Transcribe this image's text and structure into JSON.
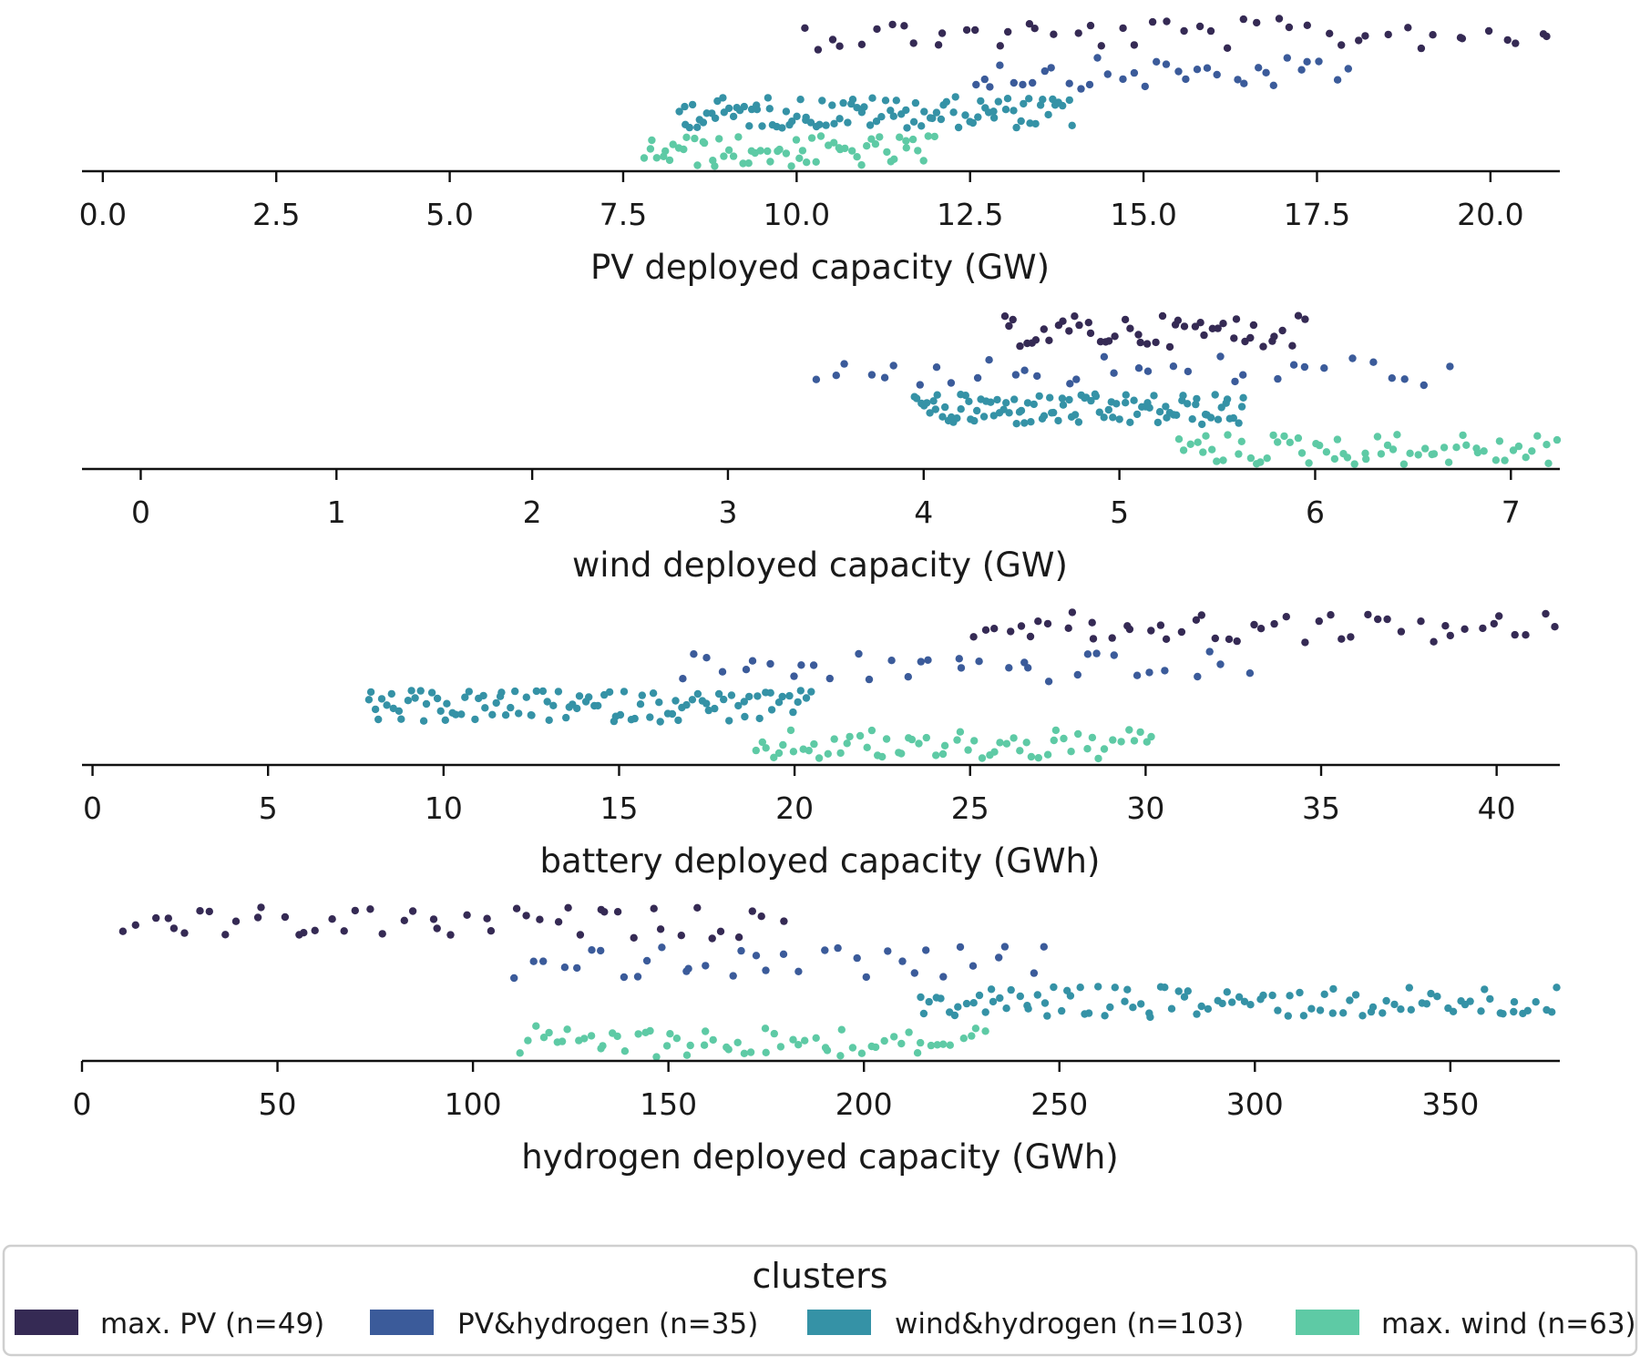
{
  "colors": {
    "maxPV": "#352a54",
    "pvHydrogen": "#3b5b9a",
    "windHydrogen": "#3592a6",
    "maxWind": "#5ecaa5"
  },
  "legend": {
    "title": "clusters",
    "entries": [
      {
        "label": "max. PV (n=49)",
        "color": "#352a54"
      },
      {
        "label": "PV&hydrogen (n=35)",
        "color": "#3b5b9a"
      },
      {
        "label": "wind&hydrogen (n=103)",
        "color": "#3592a6"
      },
      {
        "label": "max. wind (n=63)",
        "color": "#5ecaa5"
      }
    ]
  },
  "chart_data": [
    {
      "type": "scatter",
      "title": "",
      "xlabel": "PV deployed capacity (GW)",
      "ylabel": "",
      "xlim": [
        -0.3,
        21.0
      ],
      "xticks": [
        0.0,
        2.5,
        5.0,
        7.5,
        10.0,
        12.5,
        15.0,
        17.5,
        20.0
      ],
      "xtick_labels": [
        "0.0",
        "2.5",
        "5.0",
        "7.5",
        "10.0",
        "12.5",
        "15.0",
        "17.5",
        "20.0"
      ],
      "grid": false,
      "series": [
        {
          "cluster": "max. PV",
          "x_range": [
            10.0,
            21.0
          ],
          "n": 49
        },
        {
          "cluster": "PV&hydrogen",
          "x_range": [
            12.5,
            18.0
          ],
          "n": 35
        },
        {
          "cluster": "wind&hydrogen",
          "x_range": [
            8.3,
            14.0
          ],
          "n": 103
        },
        {
          "cluster": "max. wind",
          "x_range": [
            7.8,
            12.0
          ],
          "n": 63
        }
      ]
    },
    {
      "type": "scatter",
      "title": "",
      "xlabel": "wind deployed capacity (GW)",
      "ylabel": "",
      "xlim": [
        -0.3,
        7.25
      ],
      "xticks": [
        0,
        1,
        2,
        3,
        4,
        5,
        6,
        7
      ],
      "xtick_labels": [
        "0",
        "1",
        "2",
        "3",
        "4",
        "5",
        "6",
        "7"
      ],
      "grid": false,
      "series": [
        {
          "cluster": "max. PV",
          "x_range": [
            4.4,
            5.95
          ],
          "n": 49
        },
        {
          "cluster": "PV&hydrogen",
          "x_range": [
            3.4,
            6.7
          ],
          "n": 35
        },
        {
          "cluster": "wind&hydrogen",
          "x_range": [
            3.95,
            5.65
          ],
          "n": 103
        },
        {
          "cluster": "max. wind",
          "x_range": [
            5.3,
            7.25
          ],
          "n": 63
        }
      ]
    },
    {
      "type": "scatter",
      "title": "",
      "xlabel": "battery deployed capacity (GWh)",
      "ylabel": "",
      "xlim": [
        -0.3,
        41.8
      ],
      "xticks": [
        0,
        5,
        10,
        15,
        20,
        25,
        30,
        35,
        40
      ],
      "xtick_labels": [
        "0",
        "5",
        "10",
        "15",
        "20",
        "25",
        "30",
        "35",
        "40"
      ],
      "grid": false,
      "series": [
        {
          "cluster": "max. PV",
          "x_range": [
            25.0,
            41.8
          ],
          "n": 49
        },
        {
          "cluster": "PV&hydrogen",
          "x_range": [
            16.5,
            33.0
          ],
          "n": 35
        },
        {
          "cluster": "wind&hydrogen",
          "x_range": [
            7.8,
            20.5
          ],
          "n": 103
        },
        {
          "cluster": "max. wind",
          "x_range": [
            18.8,
            30.3
          ],
          "n": 63
        }
      ]
    },
    {
      "type": "scatter",
      "title": "",
      "xlabel": "hydrogen deployed capacity (GWh)",
      "ylabel": "",
      "xlim": [
        0,
        378
      ],
      "xticks": [
        0,
        50,
        100,
        150,
        200,
        250,
        300,
        350
      ],
      "xtick_labels": [
        "0",
        "50",
        "100",
        "150",
        "200",
        "250",
        "300",
        "350"
      ],
      "grid": false,
      "series": [
        {
          "cluster": "max. PV",
          "x_range": [
            10,
            180
          ],
          "n": 49
        },
        {
          "cluster": "PV&hydrogen",
          "x_range": [
            110,
            248
          ],
          "n": 35
        },
        {
          "cluster": "wind&hydrogen",
          "x_range": [
            214,
            378
          ],
          "n": 103
        },
        {
          "cluster": "max. wind",
          "x_range": [
            112,
            232
          ],
          "n": 63
        }
      ]
    }
  ]
}
